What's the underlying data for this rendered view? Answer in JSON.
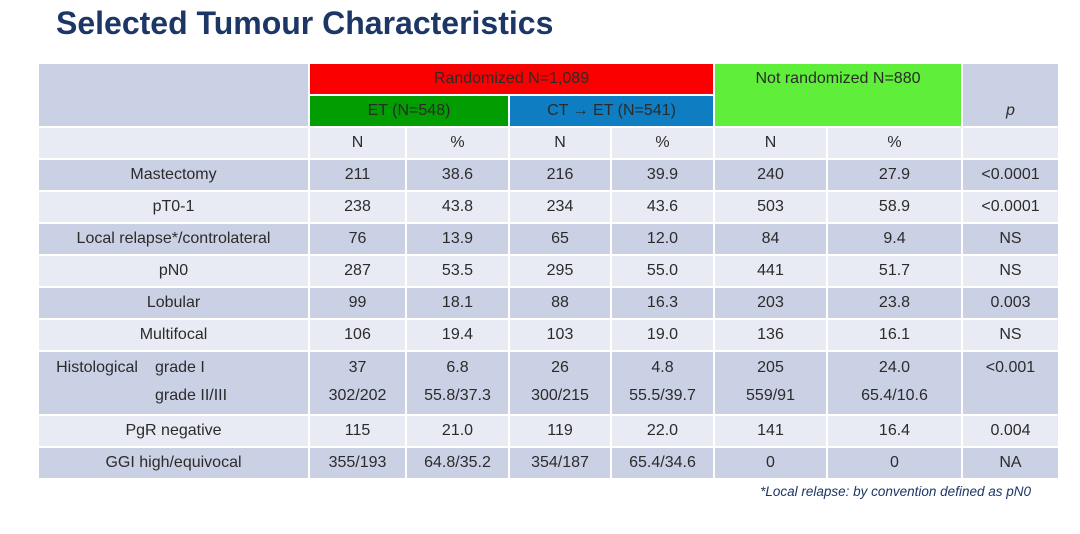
{
  "slide": {
    "title": "Selected Tumour Characteristics",
    "footnote": "*Local relapse: by convention defined as pN0"
  },
  "colors": {
    "title_navy": "#1c3666",
    "red": "#fb0000",
    "green_dark": "#019d01",
    "blue": "#0e7dc2",
    "green_bright": "#5fee3a",
    "row_dark": "#cbd1e4",
    "row_light": "#e9ebf4"
  },
  "table": {
    "header": {
      "randomized": "Randomized N=1,089",
      "et": "ET (N=548)",
      "ct_et": "CT → ET (N=541)",
      "not_randomized": "Not randomized N=880",
      "p": "p",
      "n_label": "N",
      "pct_label": "%"
    },
    "rows": [
      {
        "label": "Mastectomy",
        "cells": [
          "211",
          "38.6",
          "216",
          "39.9",
          "240",
          "27.9",
          "<0.0001"
        ],
        "bold": [
          0,
          0,
          0,
          0,
          0,
          1,
          1
        ]
      },
      {
        "label": "pT0-1",
        "cells": [
          "238",
          "43.8",
          "234",
          "43.6",
          "503",
          "58.9",
          "<0.0001"
        ],
        "bold": [
          0,
          0,
          0,
          0,
          0,
          1,
          1
        ]
      },
      {
        "label": "Local relapse*/controlateral",
        "cells": [
          "76",
          "13.9",
          "65",
          "12.0",
          "84",
          "9.4",
          "NS"
        ],
        "bold": [
          0,
          0,
          0,
          0,
          0,
          0,
          0
        ]
      },
      {
        "label": "pN0",
        "cells": [
          "287",
          "53.5",
          "295",
          "55.0",
          "441",
          "51.7",
          "NS"
        ],
        "bold": [
          0,
          0,
          0,
          0,
          0,
          0,
          0
        ]
      },
      {
        "label": "Lobular",
        "cells": [
          "99",
          "18.1",
          "88",
          "16.3",
          "203",
          "23.8",
          "0.003"
        ],
        "bold": [
          0,
          0,
          0,
          0,
          0,
          1,
          1
        ]
      },
      {
        "label": "Multifocal",
        "cells": [
          "106",
          "19.4",
          "103",
          "19.0",
          "136",
          "16.1",
          "NS"
        ],
        "bold": [
          0,
          0,
          0,
          0,
          0,
          0,
          0
        ]
      },
      {
        "label": "Histological",
        "sublabel": "grade I\ngrade II/III",
        "tall": true,
        "cells": [
          "37\n302/202",
          "6.8\n55.8/37.3",
          "26\n300/215",
          "4.8\n55.5/39.7",
          "205\n559/91",
          "24.0\n65.4/10.6",
          "<0.001"
        ],
        "bold": [
          0,
          0,
          0,
          0,
          0,
          1,
          1
        ]
      },
      {
        "label": "PgR negative",
        "cells": [
          "115",
          "21.0",
          "119",
          "22.0",
          "141",
          "16.4",
          "0.004"
        ],
        "bold": [
          0,
          0,
          0,
          0,
          0,
          1,
          1
        ]
      },
      {
        "label": "GGI high/equivocal",
        "cells": [
          "355/193",
          "64.8/35.2",
          "354/187",
          "65.4/34.6",
          "0",
          "0",
          "NA"
        ],
        "bold": [
          0,
          0,
          0,
          0,
          0,
          0,
          0
        ]
      }
    ]
  }
}
